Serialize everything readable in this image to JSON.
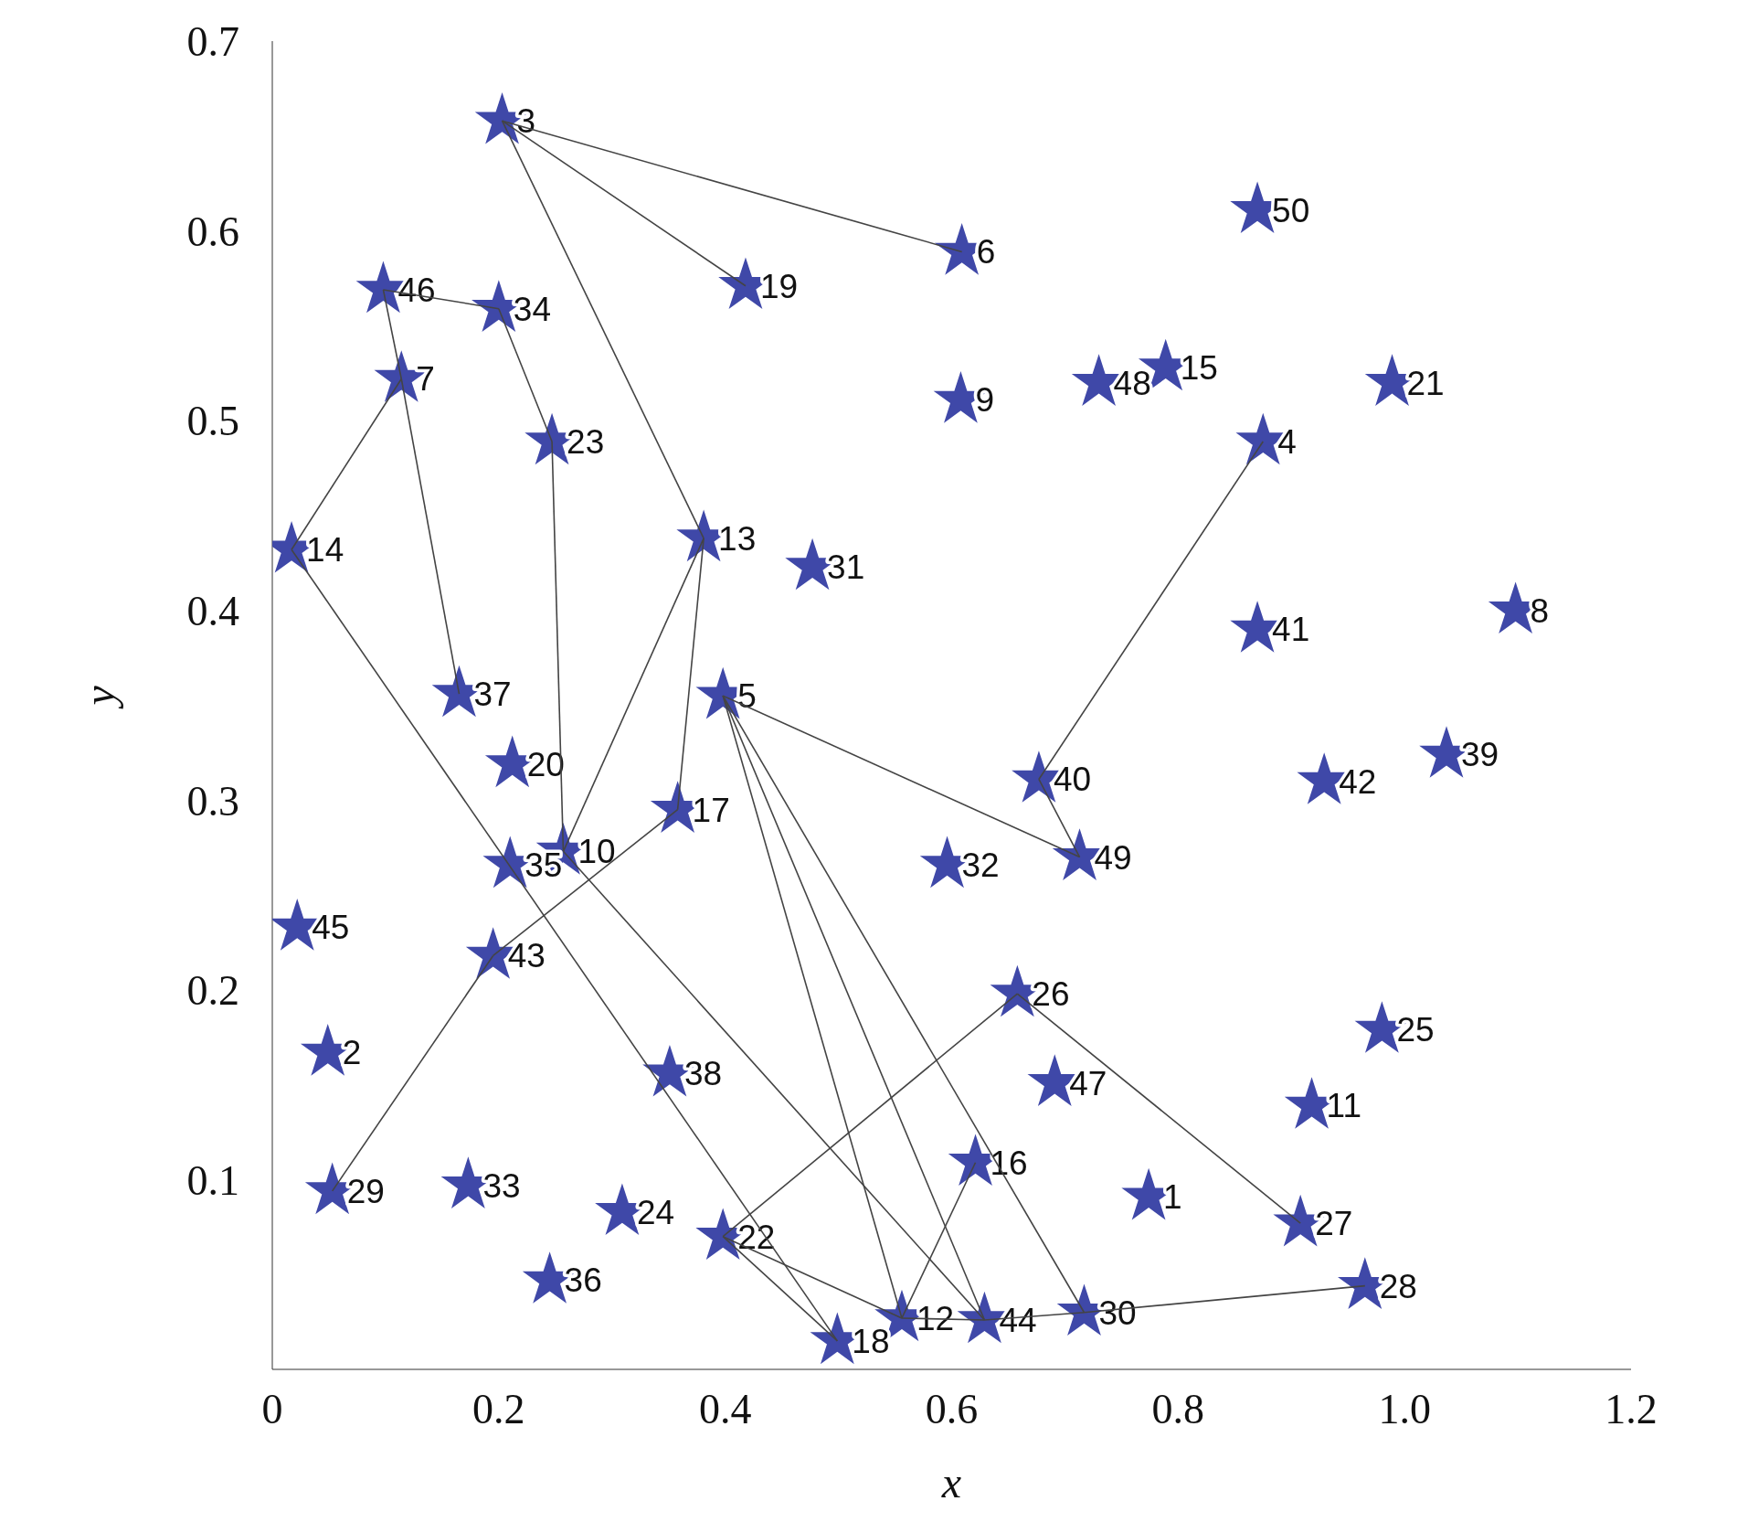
{
  "chart_data": {
    "type": "scatter",
    "xlabel": "x",
    "ylabel": "y",
    "xlim": [
      0,
      1.2
    ],
    "ylim": [
      0,
      0.7
    ],
    "xticks": [
      0,
      0.2,
      0.4,
      {
        "value": 0.6,
        "label": "0.6"
      },
      0.8,
      {
        "value": 1.0,
        "label": "1.0"
      },
      1.2
    ],
    "yticks": [
      0.1,
      0.2,
      0.3,
      0.4,
      0.5,
      0.6,
      0.7
    ],
    "series": [
      {
        "type": "line",
        "color": "#444444",
        "x": [
          0.203,
          0.609
        ],
        "values": [
          0.658,
          0.589
        ]
      },
      {
        "type": "line",
        "color": "#444444",
        "x": [
          0.203,
          0.418
        ],
        "values": [
          0.658,
          0.571
        ]
      },
      {
        "type": "line",
        "color": "#444444",
        "x": [
          0.381,
          0.203
        ],
        "values": [
          0.438,
          0.658
        ]
      },
      {
        "type": "line",
        "color": "#444444",
        "x": [
          0.2,
          0.098
        ],
        "values": [
          0.559,
          0.569
        ]
      },
      {
        "type": "line",
        "color": "#444444",
        "x": [
          0.098,
          0.114
        ],
        "values": [
          0.569,
          0.522
        ]
      },
      {
        "type": "line",
        "color": "#444444",
        "x": [
          0.247,
          0.2
        ],
        "values": [
          0.489,
          0.559
        ]
      },
      {
        "type": "line",
        "color": "#444444",
        "x": [
          0.257,
          0.247
        ],
        "values": [
          0.273,
          0.489
        ]
      },
      {
        "type": "line",
        "color": "#444444",
        "x": [
          0.114,
          0.165
        ],
        "values": [
          0.522,
          0.356
        ]
      },
      {
        "type": "line",
        "color": "#444444",
        "x": [
          0.114,
          0.017
        ],
        "values": [
          0.522,
          0.432
        ]
      },
      {
        "type": "line",
        "color": "#444444",
        "x": [
          0.017,
          0.499
        ],
        "values": [
          0.432,
          0.015
        ]
      },
      {
        "type": "line",
        "color": "#444444",
        "x": [
          0.381,
          0.257
        ],
        "values": [
          0.438,
          0.273
        ]
      },
      {
        "type": "line",
        "color": "#444444",
        "x": [
          0.381,
          0.358
        ],
        "values": [
          0.438,
          0.295
        ]
      },
      {
        "type": "line",
        "color": "#444444",
        "x": [
          0.358,
          0.195
        ],
        "values": [
          0.295,
          0.218
        ]
      },
      {
        "type": "line",
        "color": "#444444",
        "x": [
          0.195,
          0.053
        ],
        "values": [
          0.218,
          0.094
        ]
      },
      {
        "type": "line",
        "color": "#444444",
        "x": [
          0.257,
          0.629
        ],
        "values": [
          0.273,
          0.026
        ]
      },
      {
        "type": "line",
        "color": "#444444",
        "x": [
          0.398,
          0.556
        ],
        "values": [
          0.355,
          0.027
        ]
      },
      {
        "type": "line",
        "color": "#444444",
        "x": [
          0.398,
          0.629
        ],
        "values": [
          0.355,
          0.026
        ]
      },
      {
        "type": "line",
        "color": "#444444",
        "x": [
          0.398,
          0.717
        ],
        "values": [
          0.355,
          0.03
        ]
      },
      {
        "type": "line",
        "color": "#444444",
        "x": [
          0.398,
          0.713
        ],
        "values": [
          0.355,
          0.27
        ]
      },
      {
        "type": "line",
        "color": "#444444",
        "x": [
          0.713,
          0.677
        ],
        "values": [
          0.27,
          0.311
        ]
      },
      {
        "type": "line",
        "color": "#444444",
        "x": [
          0.677,
          0.875
        ],
        "values": [
          0.311,
          0.489
        ]
      },
      {
        "type": "line",
        "color": "#444444",
        "x": [
          0.398,
          0.658
        ],
        "values": [
          0.07,
          0.198
        ]
      },
      {
        "type": "line",
        "color": "#444444",
        "x": [
          0.658,
          0.908
        ],
        "values": [
          0.198,
          0.077
        ]
      },
      {
        "type": "line",
        "color": "#444444",
        "x": [
          0.398,
          0.499
        ],
        "values": [
          0.07,
          0.015
        ]
      },
      {
        "type": "line",
        "color": "#444444",
        "x": [
          0.556,
          0.398
        ],
        "values": [
          0.027,
          0.07
        ]
      },
      {
        "type": "line",
        "color": "#444444",
        "x": [
          0.556,
          0.621
        ],
        "values": [
          0.027,
          0.109
        ]
      },
      {
        "type": "line",
        "color": "#444444",
        "x": [
          0.556,
          0.629,
          0.717,
          0.965
        ],
        "values": [
          0.027,
          0.026,
          0.03,
          0.044
        ]
      },
      {
        "type": "scatter",
        "color": "#3f48a8",
        "marker": "star",
        "x": [
          0.774,
          0.049,
          0.203,
          0.875,
          0.398,
          0.609,
          0.114,
          1.098,
          0.608,
          0.257,
          0.918,
          0.556,
          0.381,
          0.017,
          0.789,
          0.621,
          0.358,
          0.499,
          0.418,
          0.212,
          0.989,
          0.398,
          0.247,
          0.309,
          0.98,
          0.658,
          0.908,
          0.965,
          0.053,
          0.717,
          0.477,
          0.596,
          0.173,
          0.2,
          0.21,
          0.245,
          0.165,
          0.351,
          1.037,
          0.677,
          0.87,
          0.929,
          0.195,
          0.629,
          0.022,
          0.098,
          0.691,
          0.73,
          0.713,
          0.87
        ],
        "values": [
          0.091,
          0.167,
          0.658,
          0.489,
          0.355,
          0.589,
          0.522,
          0.4,
          0.511,
          0.273,
          0.139,
          0.027,
          0.438,
          0.432,
          0.528,
          0.109,
          0.295,
          0.015,
          0.571,
          0.319,
          0.52,
          0.07,
          0.489,
          0.083,
          0.179,
          0.198,
          0.077,
          0.044,
          0.094,
          0.03,
          0.423,
          0.266,
          0.097,
          0.559,
          0.266,
          0.047,
          0.356,
          0.156,
          0.324,
          0.311,
          0.39,
          0.31,
          0.218,
          0.026,
          0.233,
          0.569,
          0.151,
          0.52,
          0.27,
          0.611
        ]
      }
    ],
    "annotations": [
      {
        "text": "1",
        "x": 0.774,
        "y": 0.091
      },
      {
        "text": "2",
        "x": 0.049,
        "y": 0.167
      },
      {
        "text": "3",
        "x": 0.203,
        "y": 0.658
      },
      {
        "text": "4",
        "x": 0.875,
        "y": 0.489
      },
      {
        "text": "5",
        "x": 0.398,
        "y": 0.355
      },
      {
        "text": "6",
        "x": 0.609,
        "y": 0.589
      },
      {
        "text": "7",
        "x": 0.114,
        "y": 0.522
      },
      {
        "text": "8",
        "x": 1.098,
        "y": 0.4
      },
      {
        "text": "9",
        "x": 0.608,
        "y": 0.511
      },
      {
        "text": "10",
        "x": 0.257,
        "y": 0.273
      },
      {
        "text": "11",
        "x": 0.918,
        "y": 0.139
      },
      {
        "text": "12",
        "x": 0.556,
        "y": 0.027
      },
      {
        "text": "13",
        "x": 0.381,
        "y": 0.438
      },
      {
        "text": "14",
        "x": 0.017,
        "y": 0.432
      },
      {
        "text": "15",
        "x": 0.789,
        "y": 0.528
      },
      {
        "text": "16",
        "x": 0.621,
        "y": 0.109
      },
      {
        "text": "17",
        "x": 0.358,
        "y": 0.295
      },
      {
        "text": "18",
        "x": 0.499,
        "y": 0.015
      },
      {
        "text": "19",
        "x": 0.418,
        "y": 0.571
      },
      {
        "text": "20",
        "x": 0.212,
        "y": 0.319
      },
      {
        "text": "21",
        "x": 0.989,
        "y": 0.52
      },
      {
        "text": "22",
        "x": 0.398,
        "y": 0.07
      },
      {
        "text": "23",
        "x": 0.247,
        "y": 0.489
      },
      {
        "text": "24",
        "x": 0.309,
        "y": 0.083
      },
      {
        "text": "25",
        "x": 0.98,
        "y": 0.179
      },
      {
        "text": "26",
        "x": 0.658,
        "y": 0.198
      },
      {
        "text": "27",
        "x": 0.908,
        "y": 0.077
      },
      {
        "text": "28",
        "x": 0.965,
        "y": 0.044
      },
      {
        "text": "29",
        "x": 0.053,
        "y": 0.094
      },
      {
        "text": "30",
        "x": 0.717,
        "y": 0.03
      },
      {
        "text": "31",
        "x": 0.477,
        "y": 0.423
      },
      {
        "text": "32",
        "x": 0.596,
        "y": 0.266
      },
      {
        "text": "33",
        "x": 0.173,
        "y": 0.097
      },
      {
        "text": "34",
        "x": 0.2,
        "y": 0.559
      },
      {
        "text": "35",
        "x": 0.21,
        "y": 0.266
      },
      {
        "text": "36",
        "x": 0.245,
        "y": 0.047
      },
      {
        "text": "37",
        "x": 0.165,
        "y": 0.356
      },
      {
        "text": "38",
        "x": 0.351,
        "y": 0.156
      },
      {
        "text": "39",
        "x": 1.037,
        "y": 0.324
      },
      {
        "text": "40",
        "x": 0.677,
        "y": 0.311
      },
      {
        "text": "41",
        "x": 0.87,
        "y": 0.39
      },
      {
        "text": "42",
        "x": 0.929,
        "y": 0.31
      },
      {
        "text": "43",
        "x": 0.195,
        "y": 0.218
      },
      {
        "text": "44",
        "x": 0.629,
        "y": 0.026
      },
      {
        "text": "45",
        "x": 0.022,
        "y": 0.233
      },
      {
        "text": "46",
        "x": 0.098,
        "y": 0.569
      },
      {
        "text": "47",
        "x": 0.691,
        "y": 0.151
      },
      {
        "text": "48",
        "x": 0.73,
        "y": 0.52
      },
      {
        "text": "49",
        "x": 0.713,
        "y": 0.27
      },
      {
        "text": "50",
        "x": 0.87,
        "y": 0.611
      }
    ]
  }
}
